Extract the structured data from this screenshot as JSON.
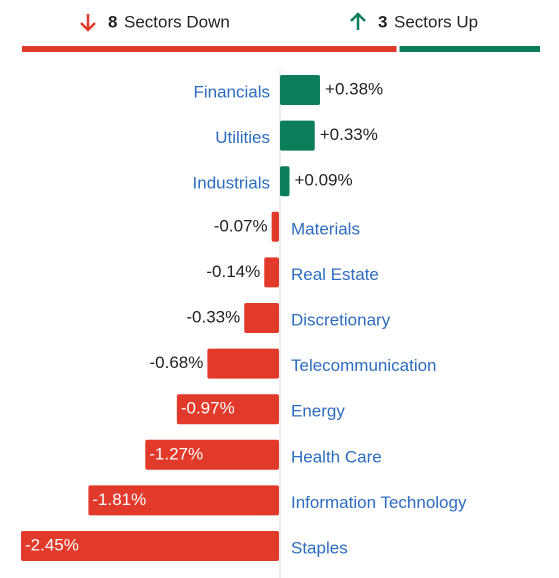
{
  "chart_data": {
    "type": "diverging-bar",
    "summary": {
      "down_count": 8,
      "down_label": "Sectors Down",
      "up_count": 3,
      "up_label": "Sectors Up"
    },
    "categories": [
      "Financials",
      "Utilities",
      "Industrials",
      "Materials",
      "Real Estate",
      "Discretionary",
      "Telecommunication",
      "Energy",
      "Health Care",
      "Information Technology",
      "Staples"
    ],
    "values": [
      0.38,
      0.33,
      0.09,
      -0.07,
      -0.14,
      -0.33,
      -0.68,
      -0.97,
      -1.27,
      -1.81,
      -2.45
    ],
    "value_labels": [
      "+0.38%",
      "+0.33%",
      "+0.09%",
      "-0.07%",
      "-0.14%",
      "-0.33%",
      "-0.68%",
      "-0.97%",
      "-1.27%",
      "-1.81%",
      "-2.45%"
    ],
    "colors": {
      "positive": "#0b7d5b",
      "negative": "#e23a2a"
    }
  }
}
